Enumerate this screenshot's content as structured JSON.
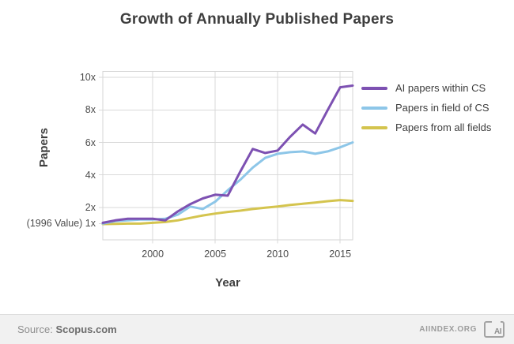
{
  "title": "Growth of Annually Published Papers",
  "chart_data": {
    "type": "line",
    "title": "Growth of Annually Published Papers",
    "xlabel": "Year",
    "ylabel": "Papers",
    "x_range": [
      1996,
      2016
    ],
    "y_range": [
      0,
      10.4
    ],
    "x": [
      1996,
      1997,
      1998,
      1999,
      2000,
      2001,
      2002,
      2003,
      2004,
      2005,
      2006,
      2007,
      2008,
      2009,
      2010,
      2011,
      2012,
      2013,
      2014,
      2015,
      2016
    ],
    "x_ticks": [
      {
        "value": 2000,
        "label": "2000"
      },
      {
        "value": 2005,
        "label": "2005"
      },
      {
        "value": 2010,
        "label": "2010"
      },
      {
        "value": 2015,
        "label": "2015"
      }
    ],
    "y_ticks": [
      {
        "value": 1,
        "label": "(1996 Value) 1x"
      },
      {
        "value": 2,
        "label": "2x"
      },
      {
        "value": 4,
        "label": "4x"
      },
      {
        "value": 6,
        "label": "6x"
      },
      {
        "value": 8,
        "label": "8x"
      },
      {
        "value": 10,
        "label": "10x"
      }
    ],
    "x_gridlines": [
      2000,
      2005,
      2010,
      2015
    ],
    "y_gridlines": [
      2,
      4,
      6,
      8,
      10
    ],
    "grid": true,
    "grid_color": "#d9d9d9",
    "legend_position": "right",
    "series": [
      {
        "name": "AI papers within CS",
        "color": "#7d51b2",
        "values": [
          1.05,
          1.2,
          1.3,
          1.3,
          1.3,
          1.2,
          1.75,
          2.2,
          2.55,
          2.78,
          2.72,
          4.2,
          5.6,
          5.35,
          5.5,
          6.35,
          7.1,
          6.55,
          8.0,
          9.4,
          9.5
        ]
      },
      {
        "name": "Papers in field of CS",
        "color": "#8dc6e8",
        "values": [
          1.0,
          1.15,
          1.2,
          1.25,
          1.25,
          1.3,
          1.55,
          2.05,
          1.9,
          2.35,
          3.05,
          3.7,
          4.45,
          5.05,
          5.3,
          5.4,
          5.45,
          5.3,
          5.45,
          5.7,
          6.0
        ]
      },
      {
        "name": "Papers from all fields",
        "color": "#d4c44e",
        "values": [
          0.97,
          0.98,
          1.0,
          1.0,
          1.05,
          1.1,
          1.2,
          1.35,
          1.5,
          1.62,
          1.72,
          1.8,
          1.9,
          1.98,
          2.05,
          2.15,
          2.22,
          2.3,
          2.38,
          2.45,
          2.4
        ]
      }
    ]
  },
  "footer": {
    "source_label": "Source:",
    "source_value": "Scopus.com",
    "site": "AIINDEX.ORG",
    "logo_text": "AI"
  }
}
